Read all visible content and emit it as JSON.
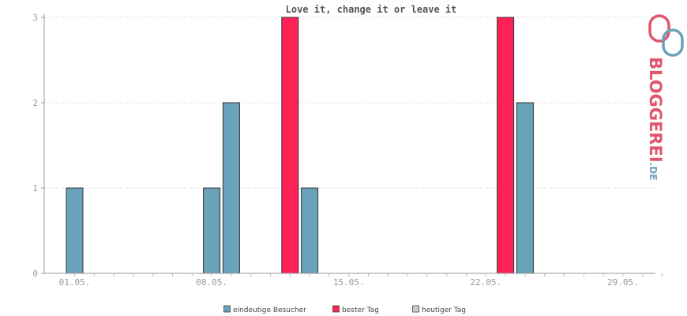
{
  "chart_data": {
    "type": "bar",
    "title": "Love it, change it or leave it",
    "xlabel": "",
    "ylabel": "",
    "ylim": [
      0,
      3
    ],
    "yticks": [
      "0",
      "1",
      "2",
      "3"
    ],
    "xticks": [
      {
        "label": "01.05.",
        "day": 1
      },
      {
        "label": "08.05.",
        "day": 8
      },
      {
        "label": "15.05.",
        "day": 15
      },
      {
        "label": "22.05.",
        "day": 22
      },
      {
        "label": "29.05.",
        "day": 29
      }
    ],
    "xlim_days": [
      1,
      31
    ],
    "grid": "horizontal dotted",
    "legend_position": "bottom",
    "series": [
      {
        "name": "eindeutige Besucher",
        "color": "#6aa2ba",
        "points": [
          {
            "day": 1,
            "value": 1
          },
          {
            "day": 8,
            "value": 1
          },
          {
            "day": 9,
            "value": 2
          },
          {
            "day": 13,
            "value": 1
          },
          {
            "day": 24,
            "value": 2
          }
        ]
      },
      {
        "name": "bester Tag",
        "color": "#ff2257",
        "points": [
          {
            "day": 12,
            "value": 3
          },
          {
            "day": 23,
            "value": 3
          }
        ]
      },
      {
        "name": "heutiger Tag",
        "color": "#cccccc",
        "points": []
      }
    ]
  },
  "logo": {
    "text_main": "BLOGGEREI",
    "text_suffix": ".DE",
    "color_main": "#e0566c",
    "color_suffix": "#6aa2ba"
  }
}
